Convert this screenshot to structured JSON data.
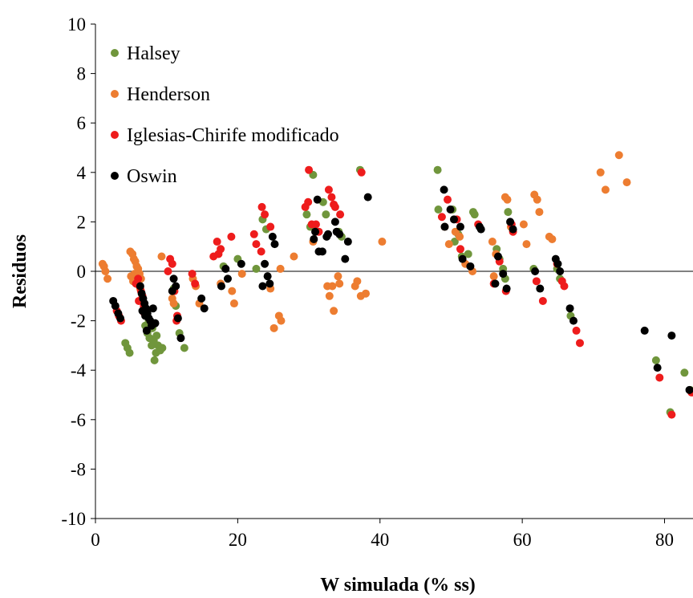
{
  "chart_data": {
    "type": "scatter",
    "xlabel": "W simulada (% ss)",
    "ylabel": "Residuos",
    "xlim": [
      0,
      84
    ],
    "ylim": [
      -10,
      10
    ],
    "xticks": [
      0,
      20,
      40,
      60,
      80
    ],
    "yticks": [
      -10,
      -8,
      -6,
      -4,
      -2,
      0,
      2,
      4,
      6,
      8,
      10
    ],
    "xtick_labels": [
      "0",
      "20",
      "40",
      "60",
      "80"
    ],
    "ytick_labels": [
      "-10",
      "-8",
      "-6",
      "-4",
      "-2",
      "0",
      "2",
      "4",
      "6",
      "8",
      "10"
    ],
    "zero_line": true,
    "grid": false,
    "legend_position": "top-left",
    "series": [
      {
        "name": "Halsey",
        "color": "#70963c",
        "points": [
          [
            4.2,
            -2.9
          ],
          [
            4.5,
            -3.1
          ],
          [
            4.8,
            -3.3
          ],
          [
            7.0,
            -2.2
          ],
          [
            7.3,
            -2.5
          ],
          [
            7.6,
            -2.7
          ],
          [
            7.9,
            -3.0
          ],
          [
            8.2,
            -2.8
          ],
          [
            8.5,
            -3.3
          ],
          [
            8.8,
            -3.0
          ],
          [
            9.1,
            -3.2
          ],
          [
            7.5,
            -2.0
          ],
          [
            8.0,
            -2.3
          ],
          [
            8.3,
            -3.6
          ],
          [
            9.4,
            -3.1
          ],
          [
            8.6,
            -2.6
          ],
          [
            11.3,
            -1.4
          ],
          [
            11.8,
            -2.5
          ],
          [
            12.5,
            -3.1
          ],
          [
            11.0,
            -0.7
          ],
          [
            18.0,
            0.2
          ],
          [
            20.0,
            0.5
          ],
          [
            22.6,
            0.1
          ],
          [
            24.0,
            1.7
          ],
          [
            23.5,
            2.1
          ],
          [
            29.7,
            2.3
          ],
          [
            30.2,
            1.8
          ],
          [
            30.6,
            3.9
          ],
          [
            32.0,
            2.8
          ],
          [
            32.4,
            2.3
          ],
          [
            34.2,
            1.6
          ],
          [
            34.6,
            1.4
          ],
          [
            37.2,
            4.1
          ],
          [
            48.1,
            4.1
          ],
          [
            48.2,
            2.5
          ],
          [
            50.2,
            2.5
          ],
          [
            50.5,
            1.2
          ],
          [
            51.0,
            1.5
          ],
          [
            51.5,
            0.6
          ],
          [
            52.4,
            0.7
          ],
          [
            53.1,
            2.4
          ],
          [
            53.3,
            2.3
          ],
          [
            56.4,
            0.9
          ],
          [
            56.8,
            0.5
          ],
          [
            57.3,
            0.1
          ],
          [
            57.6,
            -0.3
          ],
          [
            58.0,
            2.4
          ],
          [
            61.6,
            0.1
          ],
          [
            64.9,
            0.1
          ],
          [
            65.3,
            -0.3
          ],
          [
            66.8,
            -1.8
          ],
          [
            78.8,
            -3.6
          ],
          [
            80.8,
            -5.7
          ],
          [
            82.8,
            -4.1
          ],
          [
            83.6,
            -4.8
          ]
        ]
      },
      {
        "name": "Henderson",
        "color": "#ed7d31",
        "points": [
          [
            1.0,
            0.3
          ],
          [
            1.2,
            0.2
          ],
          [
            1.4,
            0.0
          ],
          [
            1.7,
            -0.3
          ],
          [
            4.9,
            0.8
          ],
          [
            5.2,
            0.7
          ],
          [
            5.4,
            0.5
          ],
          [
            5.6,
            0.4
          ],
          [
            5.8,
            0.2
          ],
          [
            6.0,
            0.1
          ],
          [
            6.2,
            -0.1
          ],
          [
            6.4,
            -0.3
          ],
          [
            5.0,
            -0.2
          ],
          [
            5.3,
            -0.4
          ],
          [
            5.5,
            -0.1
          ],
          [
            5.9,
            -0.5
          ],
          [
            6.3,
            -0.7
          ],
          [
            9.3,
            0.6
          ],
          [
            10.8,
            -1.1
          ],
          [
            11.0,
            -1.3
          ],
          [
            13.7,
            -0.3
          ],
          [
            14.1,
            -0.6
          ],
          [
            14.6,
            -1.3
          ],
          [
            17.6,
            -0.5
          ],
          [
            19.2,
            -0.8
          ],
          [
            19.5,
            -1.3
          ],
          [
            20.6,
            -0.1
          ],
          [
            24.6,
            -0.7
          ],
          [
            25.1,
            -2.3
          ],
          [
            25.8,
            -1.8
          ],
          [
            26.1,
            -2.0
          ],
          [
            26.0,
            0.1
          ],
          [
            27.9,
            0.6
          ],
          [
            30.6,
            1.2
          ],
          [
            32.6,
            -0.6
          ],
          [
            32.9,
            -1.0
          ],
          [
            33.3,
            -0.6
          ],
          [
            33.5,
            -1.6
          ],
          [
            34.1,
            -0.2
          ],
          [
            34.3,
            -0.5
          ],
          [
            36.5,
            -0.6
          ],
          [
            36.8,
            -0.4
          ],
          [
            37.3,
            -1.0
          ],
          [
            38.0,
            -0.9
          ],
          [
            40.3,
            1.2
          ],
          [
            49.1,
            1.8
          ],
          [
            49.7,
            1.1
          ],
          [
            50.6,
            1.6
          ],
          [
            51.2,
            1.4
          ],
          [
            52.0,
            0.3
          ],
          [
            53.0,
            0.0
          ],
          [
            55.8,
            1.2
          ],
          [
            56.0,
            -0.2
          ],
          [
            56.3,
            0.7
          ],
          [
            57.6,
            3.0
          ],
          [
            57.9,
            2.9
          ],
          [
            58.4,
            1.8
          ],
          [
            60.2,
            1.9
          ],
          [
            60.6,
            1.1
          ],
          [
            61.7,
            3.1
          ],
          [
            62.1,
            2.9
          ],
          [
            62.4,
            2.4
          ],
          [
            63.8,
            1.4
          ],
          [
            64.2,
            1.3
          ],
          [
            71.0,
            4.0
          ],
          [
            71.7,
            3.3
          ],
          [
            73.6,
            4.7
          ],
          [
            74.7,
            3.6
          ]
        ]
      },
      {
        "name": "Iglesias-Chirife modificado",
        "color": "#ee1c1c",
        "points": [
          [
            3.0,
            -1.6
          ],
          [
            3.3,
            -1.8
          ],
          [
            3.6,
            -2.0
          ],
          [
            6.0,
            -0.3
          ],
          [
            6.2,
            -0.6
          ],
          [
            6.4,
            -0.8
          ],
          [
            6.6,
            -1.0
          ],
          [
            6.8,
            -1.4
          ],
          [
            5.7,
            -0.5
          ],
          [
            6.1,
            -1.2
          ],
          [
            6.9,
            -1.7
          ],
          [
            10.2,
            0.0
          ],
          [
            10.5,
            0.5
          ],
          [
            10.8,
            0.3
          ],
          [
            11.1,
            -0.8
          ],
          [
            11.5,
            -1.8
          ],
          [
            11.4,
            -2.0
          ],
          [
            13.6,
            -0.1
          ],
          [
            14.0,
            -0.5
          ],
          [
            16.6,
            0.6
          ],
          [
            17.1,
            1.2
          ],
          [
            17.3,
            0.7
          ],
          [
            17.6,
            0.9
          ],
          [
            19.1,
            1.4
          ],
          [
            22.3,
            1.5
          ],
          [
            22.6,
            1.1
          ],
          [
            23.3,
            0.8
          ],
          [
            23.4,
            2.6
          ],
          [
            23.8,
            2.3
          ],
          [
            24.6,
            1.8
          ],
          [
            29.5,
            2.6
          ],
          [
            29.9,
            2.8
          ],
          [
            30.0,
            4.1
          ],
          [
            30.4,
            1.9
          ],
          [
            31.0,
            1.9
          ],
          [
            31.4,
            1.6
          ],
          [
            32.8,
            3.3
          ],
          [
            33.2,
            3.0
          ],
          [
            33.5,
            2.7
          ],
          [
            33.7,
            2.6
          ],
          [
            34.4,
            2.3
          ],
          [
            37.4,
            4.0
          ],
          [
            48.7,
            2.2
          ],
          [
            49.5,
            2.9
          ],
          [
            50.8,
            2.1
          ],
          [
            51.3,
            0.9
          ],
          [
            53.8,
            1.9
          ],
          [
            56.0,
            -0.5
          ],
          [
            56.8,
            0.4
          ],
          [
            57.7,
            -0.8
          ],
          [
            58.5,
            1.9
          ],
          [
            58.7,
            1.6
          ],
          [
            62.0,
            -0.4
          ],
          [
            62.9,
            -1.2
          ],
          [
            64.9,
            0.3
          ],
          [
            65.6,
            -0.4
          ],
          [
            65.9,
            -0.6
          ],
          [
            67.6,
            -2.4
          ],
          [
            68.1,
            -2.9
          ],
          [
            79.3,
            -4.3
          ],
          [
            81.0,
            -5.8
          ],
          [
            83.8,
            -4.9
          ]
        ]
      },
      {
        "name": "Oswin",
        "color": "#000000",
        "points": [
          [
            2.5,
            -1.2
          ],
          [
            2.8,
            -1.4
          ],
          [
            3.2,
            -1.7
          ],
          [
            3.5,
            -1.9
          ],
          [
            6.3,
            -0.6
          ],
          [
            6.5,
            -0.9
          ],
          [
            6.7,
            -1.1
          ],
          [
            6.9,
            -1.3
          ],
          [
            7.1,
            -1.5
          ],
          [
            7.3,
            -1.7
          ],
          [
            7.5,
            -1.9
          ],
          [
            7.7,
            -2.0
          ],
          [
            7.9,
            -2.2
          ],
          [
            7.2,
            -2.4
          ],
          [
            8.1,
            -1.5
          ],
          [
            8.4,
            -2.1
          ],
          [
            6.6,
            -1.6
          ],
          [
            7.0,
            -1.8
          ],
          [
            10.8,
            -0.8
          ],
          [
            11.0,
            -0.3
          ],
          [
            11.3,
            -0.6
          ],
          [
            11.6,
            -1.9
          ],
          [
            12.0,
            -2.7
          ],
          [
            14.9,
            -1.1
          ],
          [
            15.3,
            -1.5
          ],
          [
            17.7,
            -0.6
          ],
          [
            18.3,
            0.1
          ],
          [
            18.6,
            -0.3
          ],
          [
            20.5,
            0.3
          ],
          [
            23.5,
            -0.6
          ],
          [
            23.8,
            0.3
          ],
          [
            24.2,
            -0.2
          ],
          [
            24.5,
            -0.5
          ],
          [
            24.9,
            1.4
          ],
          [
            25.2,
            1.1
          ],
          [
            30.7,
            1.3
          ],
          [
            30.9,
            1.6
          ],
          [
            31.2,
            2.9
          ],
          [
            31.4,
            0.8
          ],
          [
            31.9,
            0.8
          ],
          [
            32.5,
            1.4
          ],
          [
            32.7,
            1.5
          ],
          [
            33.7,
            2.0
          ],
          [
            33.9,
            1.6
          ],
          [
            34.3,
            1.5
          ],
          [
            35.1,
            0.5
          ],
          [
            35.5,
            1.2
          ],
          [
            38.3,
            3.0
          ],
          [
            49.0,
            3.3
          ],
          [
            49.1,
            1.8
          ],
          [
            49.9,
            2.5
          ],
          [
            50.4,
            2.1
          ],
          [
            51.3,
            1.8
          ],
          [
            51.6,
            0.5
          ],
          [
            52.7,
            0.2
          ],
          [
            54.0,
            1.8
          ],
          [
            54.2,
            1.7
          ],
          [
            56.2,
            -0.5
          ],
          [
            56.6,
            0.6
          ],
          [
            57.3,
            -0.1
          ],
          [
            57.8,
            -0.7
          ],
          [
            58.3,
            2.0
          ],
          [
            58.7,
            1.7
          ],
          [
            61.8,
            0.0
          ],
          [
            62.5,
            -0.7
          ],
          [
            64.7,
            0.5
          ],
          [
            65.0,
            0.3
          ],
          [
            65.3,
            0.0
          ],
          [
            66.7,
            -1.5
          ],
          [
            67.2,
            -2.0
          ],
          [
            77.2,
            -2.4
          ],
          [
            79.0,
            -3.9
          ],
          [
            81.0,
            -2.6
          ],
          [
            83.5,
            -4.8
          ]
        ]
      }
    ]
  }
}
